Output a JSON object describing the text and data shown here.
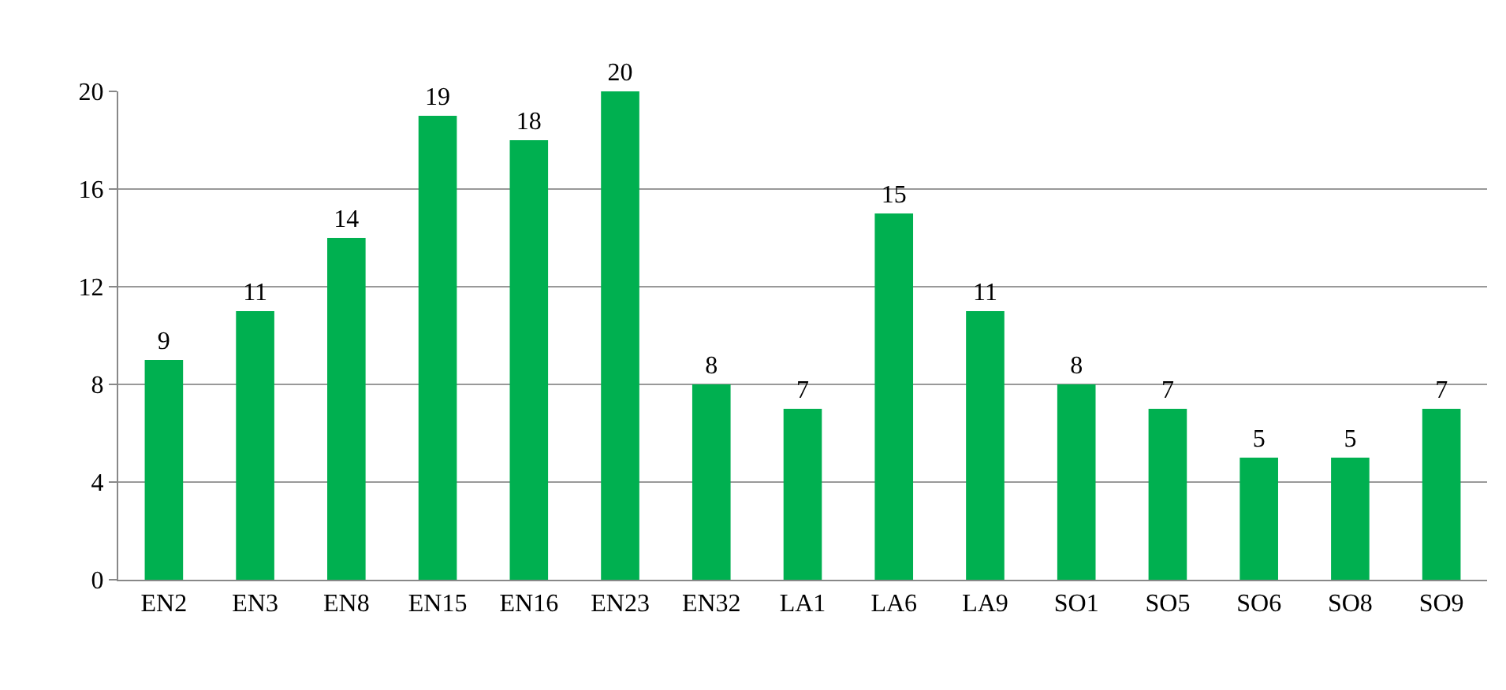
{
  "chart_data": {
    "type": "bar",
    "categories": [
      "EN2",
      "EN3",
      "EN8",
      "EN15",
      "EN16",
      "EN23",
      "EN32",
      "LA1",
      "LA6",
      "LA9",
      "SO1",
      "SO5",
      "SO6",
      "SO8",
      "SO9"
    ],
    "values": [
      9,
      11,
      14,
      19,
      18,
      20,
      8,
      7,
      15,
      11,
      8,
      7,
      5,
      5,
      7
    ],
    "color": "#00b050",
    "ylim": [
      0,
      20
    ],
    "yticks": [
      0,
      4,
      8,
      12,
      16,
      20
    ],
    "grid": "y",
    "data_labels": true,
    "legend": false
  }
}
